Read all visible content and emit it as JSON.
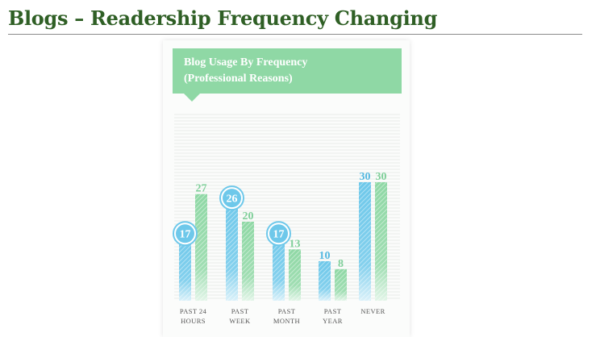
{
  "slide": {
    "title": "Blogs – Readership Frequency Changing"
  },
  "colors": {
    "title": "#2f5f25",
    "banner": "#8fd8a5",
    "series_blue": "#6ec8ea",
    "series_green": "#8fd8a5",
    "blue_label": "#55b8e0",
    "green_label": "#7fcf99"
  },
  "chart_data": {
    "type": "bar",
    "title": "Blog Usage By Frequency",
    "subtitle": "(Professional Reasons)",
    "categories": [
      [
        "PAST 24",
        "HOURS"
      ],
      [
        "PAST",
        "WEEK"
      ],
      [
        "PAST",
        "MONTH"
      ],
      [
        "PAST",
        "YEAR"
      ],
      [
        "NEVER"
      ]
    ],
    "series": [
      {
        "values": [
          17,
          26,
          17,
          10,
          30
        ]
      },
      {
        "values": [
          27,
          20,
          13,
          8,
          30
        ]
      }
    ],
    "ylim": [
      0,
      40
    ],
    "circled_labels_series": 0,
    "grid": true
  }
}
